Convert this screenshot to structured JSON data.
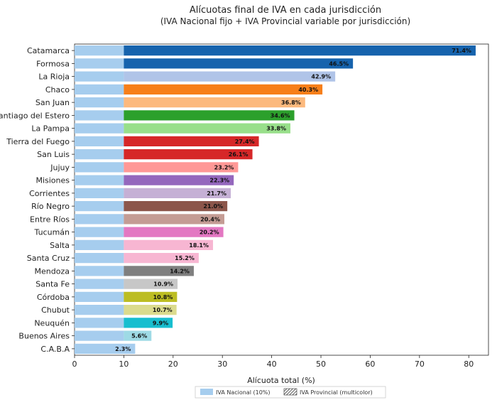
{
  "chart_data": {
    "type": "bar",
    "orientation": "horizontal",
    "stacked": true,
    "title": "Alícuotas final de IVA en cada jurisdicción",
    "subtitle": "(IVA Nacional fijo + IVA Provincial variable por jurisdicción)",
    "xlabel": "Alícuota total (%)",
    "ylabel": "",
    "xlim": [
      0,
      84
    ],
    "xticks": [
      0,
      10,
      20,
      30,
      40,
      50,
      60,
      70,
      80
    ],
    "grid": false,
    "legend_placement": "bottom-right",
    "categories": [
      "Catamarca",
      "Formosa",
      "La Rioja",
      "Chaco",
      "San Juan",
      "Santiago del Estero",
      "La Pampa",
      "Tierra del Fuego",
      "San Luis",
      "Jujuy",
      "Misiones",
      "Corrientes",
      "Río Negro",
      "Entre Ríos",
      "Tucumán",
      "Salta",
      "Santa Cruz",
      "Mendoza",
      "Santa Fe",
      "Córdoba",
      "Chubut",
      "Neuquén",
      "Buenos Aires",
      "C.A.B.A"
    ],
    "series": [
      {
        "name": "IVA Nacional (10%)",
        "color": "#a6cdee",
        "values": [
          10,
          10,
          10,
          10,
          10,
          10,
          10,
          10,
          10,
          10,
          10,
          10,
          10,
          10,
          10,
          10,
          10,
          10,
          10,
          10,
          10,
          10,
          10,
          10
        ]
      },
      {
        "name": "IVA Provincial (multicolor)",
        "values": [
          71.4,
          46.5,
          42.9,
          40.3,
          36.8,
          34.6,
          33.8,
          27.4,
          26.1,
          23.2,
          22.3,
          21.7,
          21.0,
          20.4,
          20.2,
          18.1,
          15.2,
          14.2,
          10.9,
          10.8,
          10.7,
          9.9,
          5.6,
          2.3
        ],
        "colors": [
          "#1663ad",
          "#1663ad",
          "#b0c4e8",
          "#f77f1a",
          "#fcb97d",
          "#2ca02c",
          "#98df8a",
          "#d62728",
          "#d62728",
          "#ff9896",
          "#9467bd",
          "#c5b0d5",
          "#8c564b",
          "#c49c94",
          "#e377c2",
          "#f7b6d2",
          "#f7b6d2",
          "#7f7f7f",
          "#c7c7c7",
          "#bcbd22",
          "#dbdb8d",
          "#17becf",
          "#9edae5",
          "#a6cdee"
        ]
      }
    ],
    "data_labels": [
      "71.4%",
      "46.5%",
      "42.9%",
      "40.3%",
      "36.8%",
      "34.6%",
      "33.8%",
      "27.4%",
      "26.1%",
      "23.2%",
      "22.3%",
      "21.7%",
      "21.0%",
      "20.4%",
      "20.2%",
      "18.1%",
      "15.2%",
      "14.2%",
      "10.9%",
      "10.8%",
      "10.7%",
      "9.9%",
      "5.6%",
      "2.3%"
    ]
  }
}
